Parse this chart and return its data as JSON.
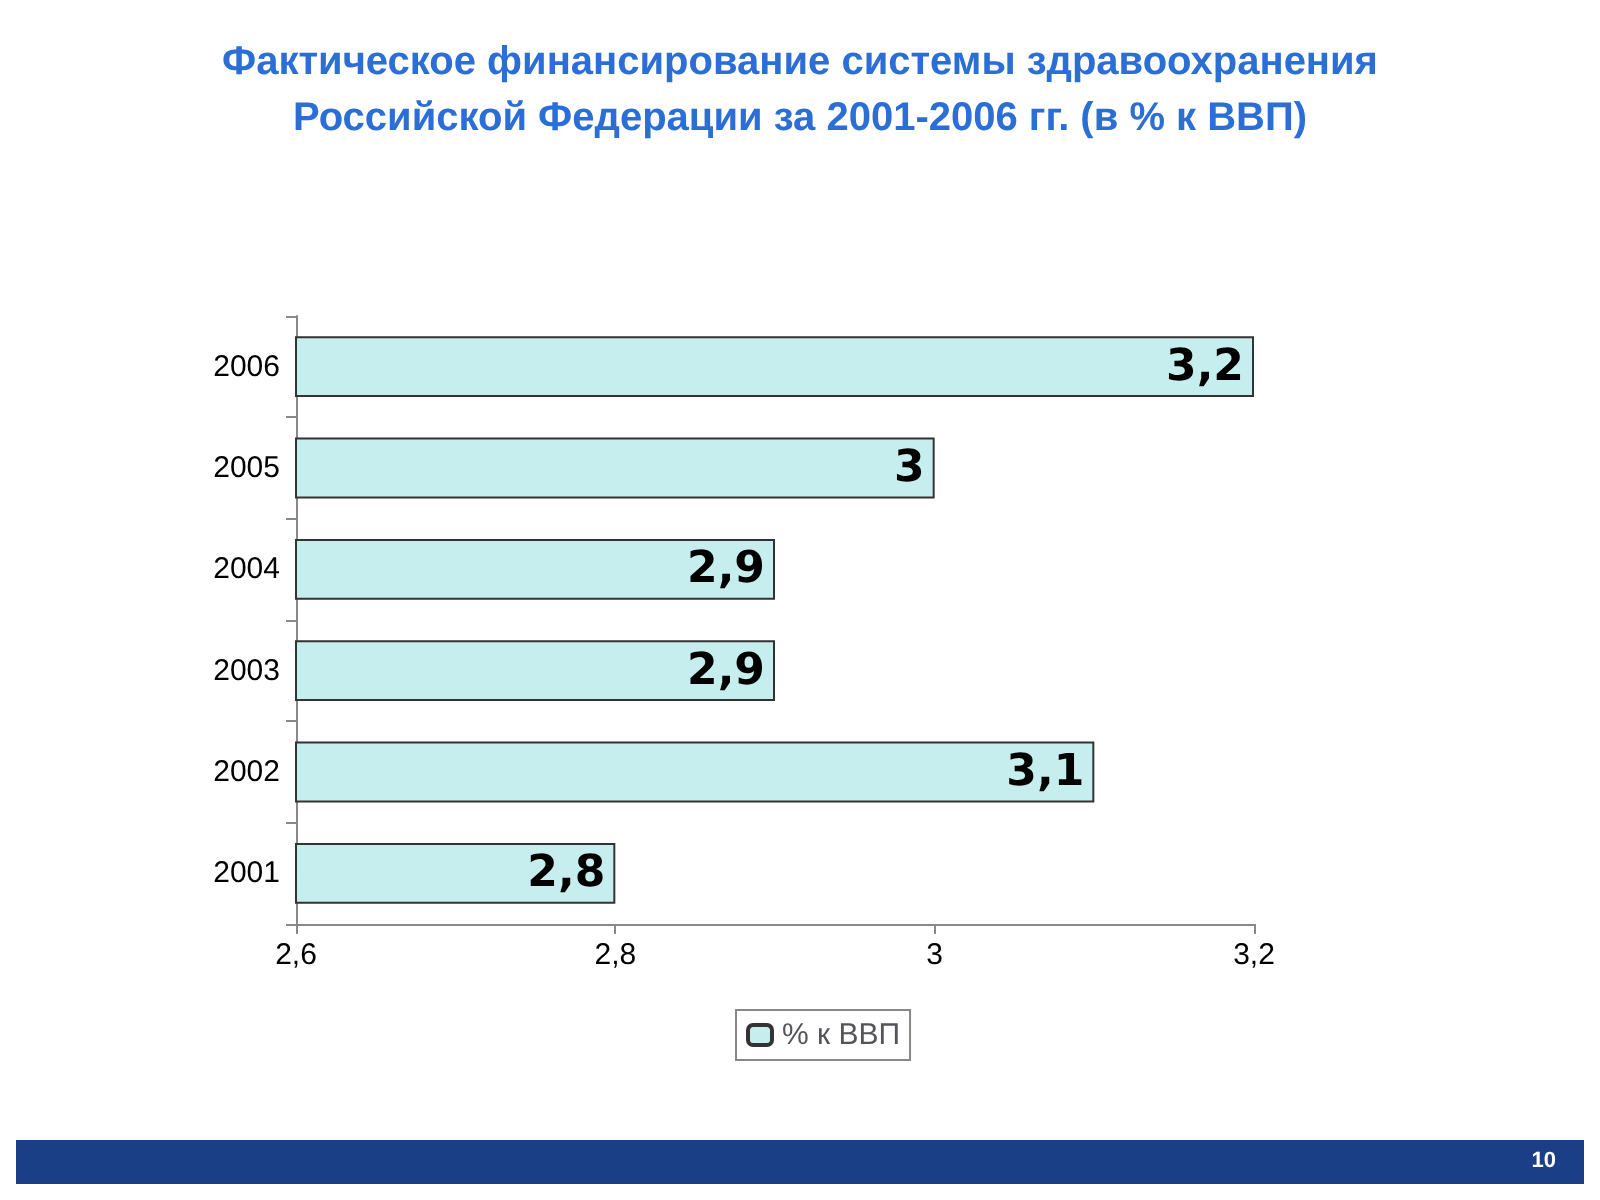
{
  "chart_data": {
    "type": "bar",
    "orientation": "horizontal",
    "title": "Фактическое финансирование системы здравоохранения\nРоссийской Федерации за 2001-2006 гг. (в % к ВВП)",
    "categories": [
      "2006",
      "2005",
      "2004",
      "2003",
      "2002",
      "2001"
    ],
    "series": [
      {
        "name": "% к ВВП",
        "color": "#c6eeee",
        "values": [
          3.2,
          3,
          2.9,
          2.9,
          3.1,
          2.8
        ],
        "value_labels": [
          "3,2",
          "3",
          "2,9",
          "2,9",
          "3,1",
          "2,8"
        ]
      }
    ],
    "xlim": [
      2.6,
      3.2
    ],
    "xticks": [
      {
        "value": 2.6,
        "label": "2,6"
      },
      {
        "value": 2.8,
        "label": "2,8"
      },
      {
        "value": 3,
        "label": "3"
      },
      {
        "value": 3.2,
        "label": "3,2"
      }
    ],
    "grid": false,
    "legend": "bottom",
    "annotations": [
      "10"
    ]
  }
}
